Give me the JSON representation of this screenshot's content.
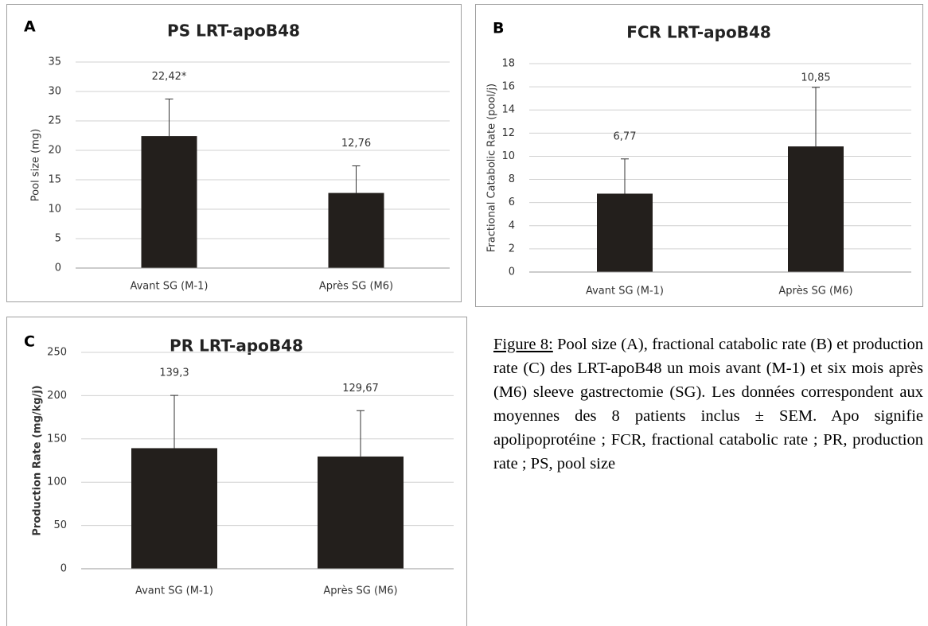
{
  "chart_data": [
    {
      "type": "bar",
      "panel": "A",
      "title": "PS LRT-apoB48",
      "y_label": "Pool size (mg)",
      "categories": [
        "Avant SG (M-1)",
        "Après SG (M6)"
      ],
      "values": [
        22.42,
        12.76
      ],
      "value_labels": [
        "22,42*",
        "12,76"
      ],
      "errors": [
        6.3,
        4.6
      ],
      "color": "#231f1c",
      "ylim": [
        0,
        35
      ],
      "yticks": [
        0,
        5,
        10,
        15,
        20,
        25,
        30,
        35
      ],
      "grid": true
    },
    {
      "type": "bar",
      "panel": "B",
      "title": "FCR LRT-apoB48",
      "y_label": "Fractional Catabolic Rate (pool/j)",
      "categories": [
        "Avant SG (M-1)",
        "Après SG (M6)"
      ],
      "values": [
        6.77,
        10.85
      ],
      "value_labels": [
        "6,77",
        "10,85"
      ],
      "errors": [
        3.0,
        5.1
      ],
      "color": "#231f1c",
      "ylim": [
        0,
        18
      ],
      "yticks": [
        0,
        2,
        4,
        6,
        8,
        10,
        12,
        14,
        16,
        18
      ],
      "grid": true
    },
    {
      "type": "bar",
      "panel": "C",
      "title": "PR LRT-apoB48",
      "y_label": "Production Rate (mg/kg/j)",
      "categories": [
        "Avant SG (M-1)",
        "Après SG (M6)"
      ],
      "values": [
        139.3,
        129.67
      ],
      "value_labels": [
        "139,3",
        "129,67"
      ],
      "errors": [
        61,
        53
      ],
      "color": "#231f1c",
      "ylim": [
        0,
        250
      ],
      "yticks": [
        0,
        50,
        100,
        150,
        200,
        250
      ],
      "grid": true
    }
  ],
  "caption": {
    "label": "Figure 8:",
    "text": "Pool size (A), fractional catabolic rate (B) et production rate (C) des LRT-apoB48 un mois avant (M-1) et six mois après (M6) sleeve gastrectomie (SG). Les données correspondent aux moyennes des 8 patients inclus ± SEM. Apo signifie apolipoprotéine ; FCR, fractional catabolic rate ; PR, production rate ; PS, pool size"
  }
}
